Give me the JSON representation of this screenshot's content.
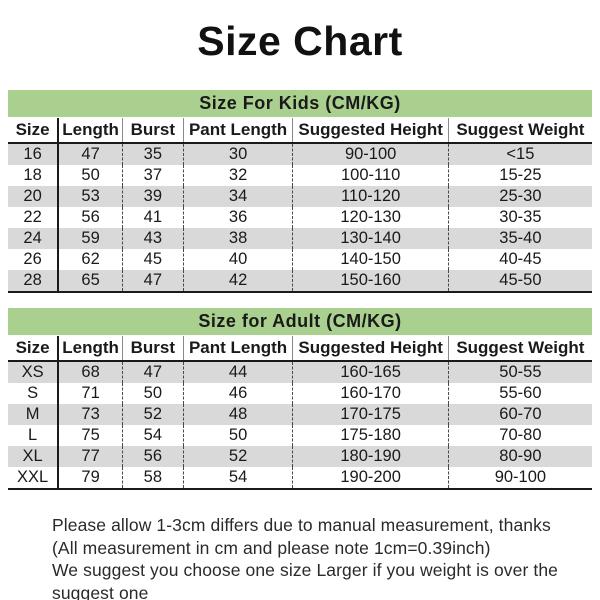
{
  "page_title": "Size Chart",
  "colors": {
    "section_header_green": "#a9d08e",
    "row_stripe_gray": "#d9d9d9",
    "text": "#1a1a1a",
    "background": "#ffffff"
  },
  "chart_data": [
    {
      "type": "table",
      "title": "Size For Kids  (CM/KG)",
      "columns": [
        "Size",
        "Length",
        "Burst",
        "Pant Length",
        "Suggested Height",
        "Suggest Weight"
      ],
      "rows": [
        [
          "16",
          "47",
          "35",
          "30",
          "90-100",
          "<15"
        ],
        [
          "18",
          "50",
          "37",
          "32",
          "100-110",
          "15-25"
        ],
        [
          "20",
          "53",
          "39",
          "34",
          "110-120",
          "25-30"
        ],
        [
          "22",
          "56",
          "41",
          "36",
          "120-130",
          "30-35"
        ],
        [
          "24",
          "59",
          "43",
          "38",
          "130-140",
          "35-40"
        ],
        [
          "26",
          "62",
          "45",
          "40",
          "140-150",
          "40-45"
        ],
        [
          "28",
          "65",
          "47",
          "42",
          "150-160",
          "45-50"
        ]
      ],
      "layout_hints": {
        "stripe_rows": "odd rows gray",
        "units": "CM/KG"
      }
    },
    {
      "type": "table",
      "title": "Size for Adult  (CM/KG)",
      "columns": [
        "Size",
        "Length",
        "Burst",
        "Pant Length",
        "Suggested Height",
        "Suggest Weight"
      ],
      "rows": [
        [
          "XS",
          "68",
          "47",
          "44",
          "160-165",
          "50-55"
        ],
        [
          "S",
          "71",
          "50",
          "46",
          "160-170",
          "55-60"
        ],
        [
          "M",
          "73",
          "52",
          "48",
          "170-175",
          "60-70"
        ],
        [
          "L",
          "75",
          "54",
          "50",
          "175-180",
          "70-80"
        ],
        [
          "XL",
          "77",
          "56",
          "52",
          "180-190",
          "80-90"
        ],
        [
          "XXL",
          "79",
          "58",
          "54",
          "190-200",
          "90-100"
        ]
      ],
      "layout_hints": {
        "stripe_rows": "odd rows gray",
        "units": "CM/KG"
      }
    }
  ],
  "footer": {
    "lines": [
      "Please allow 1-3cm differs due to manual measurement, thanks",
      "(All measurement in cm and please note 1cm=0.39inch)",
      "We suggest you choose one size Larger if you weight is over the suggest one"
    ]
  }
}
